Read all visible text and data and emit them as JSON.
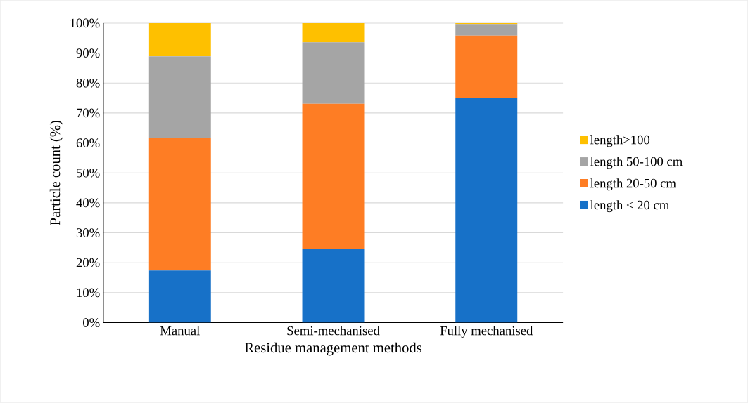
{
  "chart_data": {
    "type": "bar",
    "stacked": true,
    "xlabel": "Residue management methods",
    "ylabel": "Particle count (%)",
    "categories": [
      "Manual",
      "Semi-mechanised",
      "Fully mechanised"
    ],
    "series": [
      {
        "name": "length < 20 cm",
        "color": "#1771c8",
        "values": [
          17.4,
          24.6,
          74.9
        ]
      },
      {
        "name": "length 20-50 cm",
        "color": "#fe7d24",
        "values": [
          44.2,
          48.5,
          20.9
        ]
      },
      {
        "name": "length 50-100 cm",
        "color": "#a5a5a5",
        "values": [
          27.3,
          20.5,
          3.9
        ]
      },
      {
        "name": "length>100",
        "color": "#fec000",
        "values": [
          11.1,
          6.4,
          0.3
        ]
      }
    ],
    "ylim": [
      0,
      100
    ],
    "yticks": [
      {
        "value": 0,
        "label": "0%"
      },
      {
        "value": 10,
        "label": "10%"
      },
      {
        "value": 20,
        "label": "20%"
      },
      {
        "value": 30,
        "label": "30%"
      },
      {
        "value": 40,
        "label": "40%"
      },
      {
        "value": 50,
        "label": "50%"
      },
      {
        "value": 60,
        "label": "60%"
      },
      {
        "value": 70,
        "label": "70%"
      },
      {
        "value": 80,
        "label": "80%"
      },
      {
        "value": 90,
        "label": "90%"
      },
      {
        "value": 100,
        "label": "100%"
      }
    ],
    "grid": "y",
    "legend": "right"
  }
}
